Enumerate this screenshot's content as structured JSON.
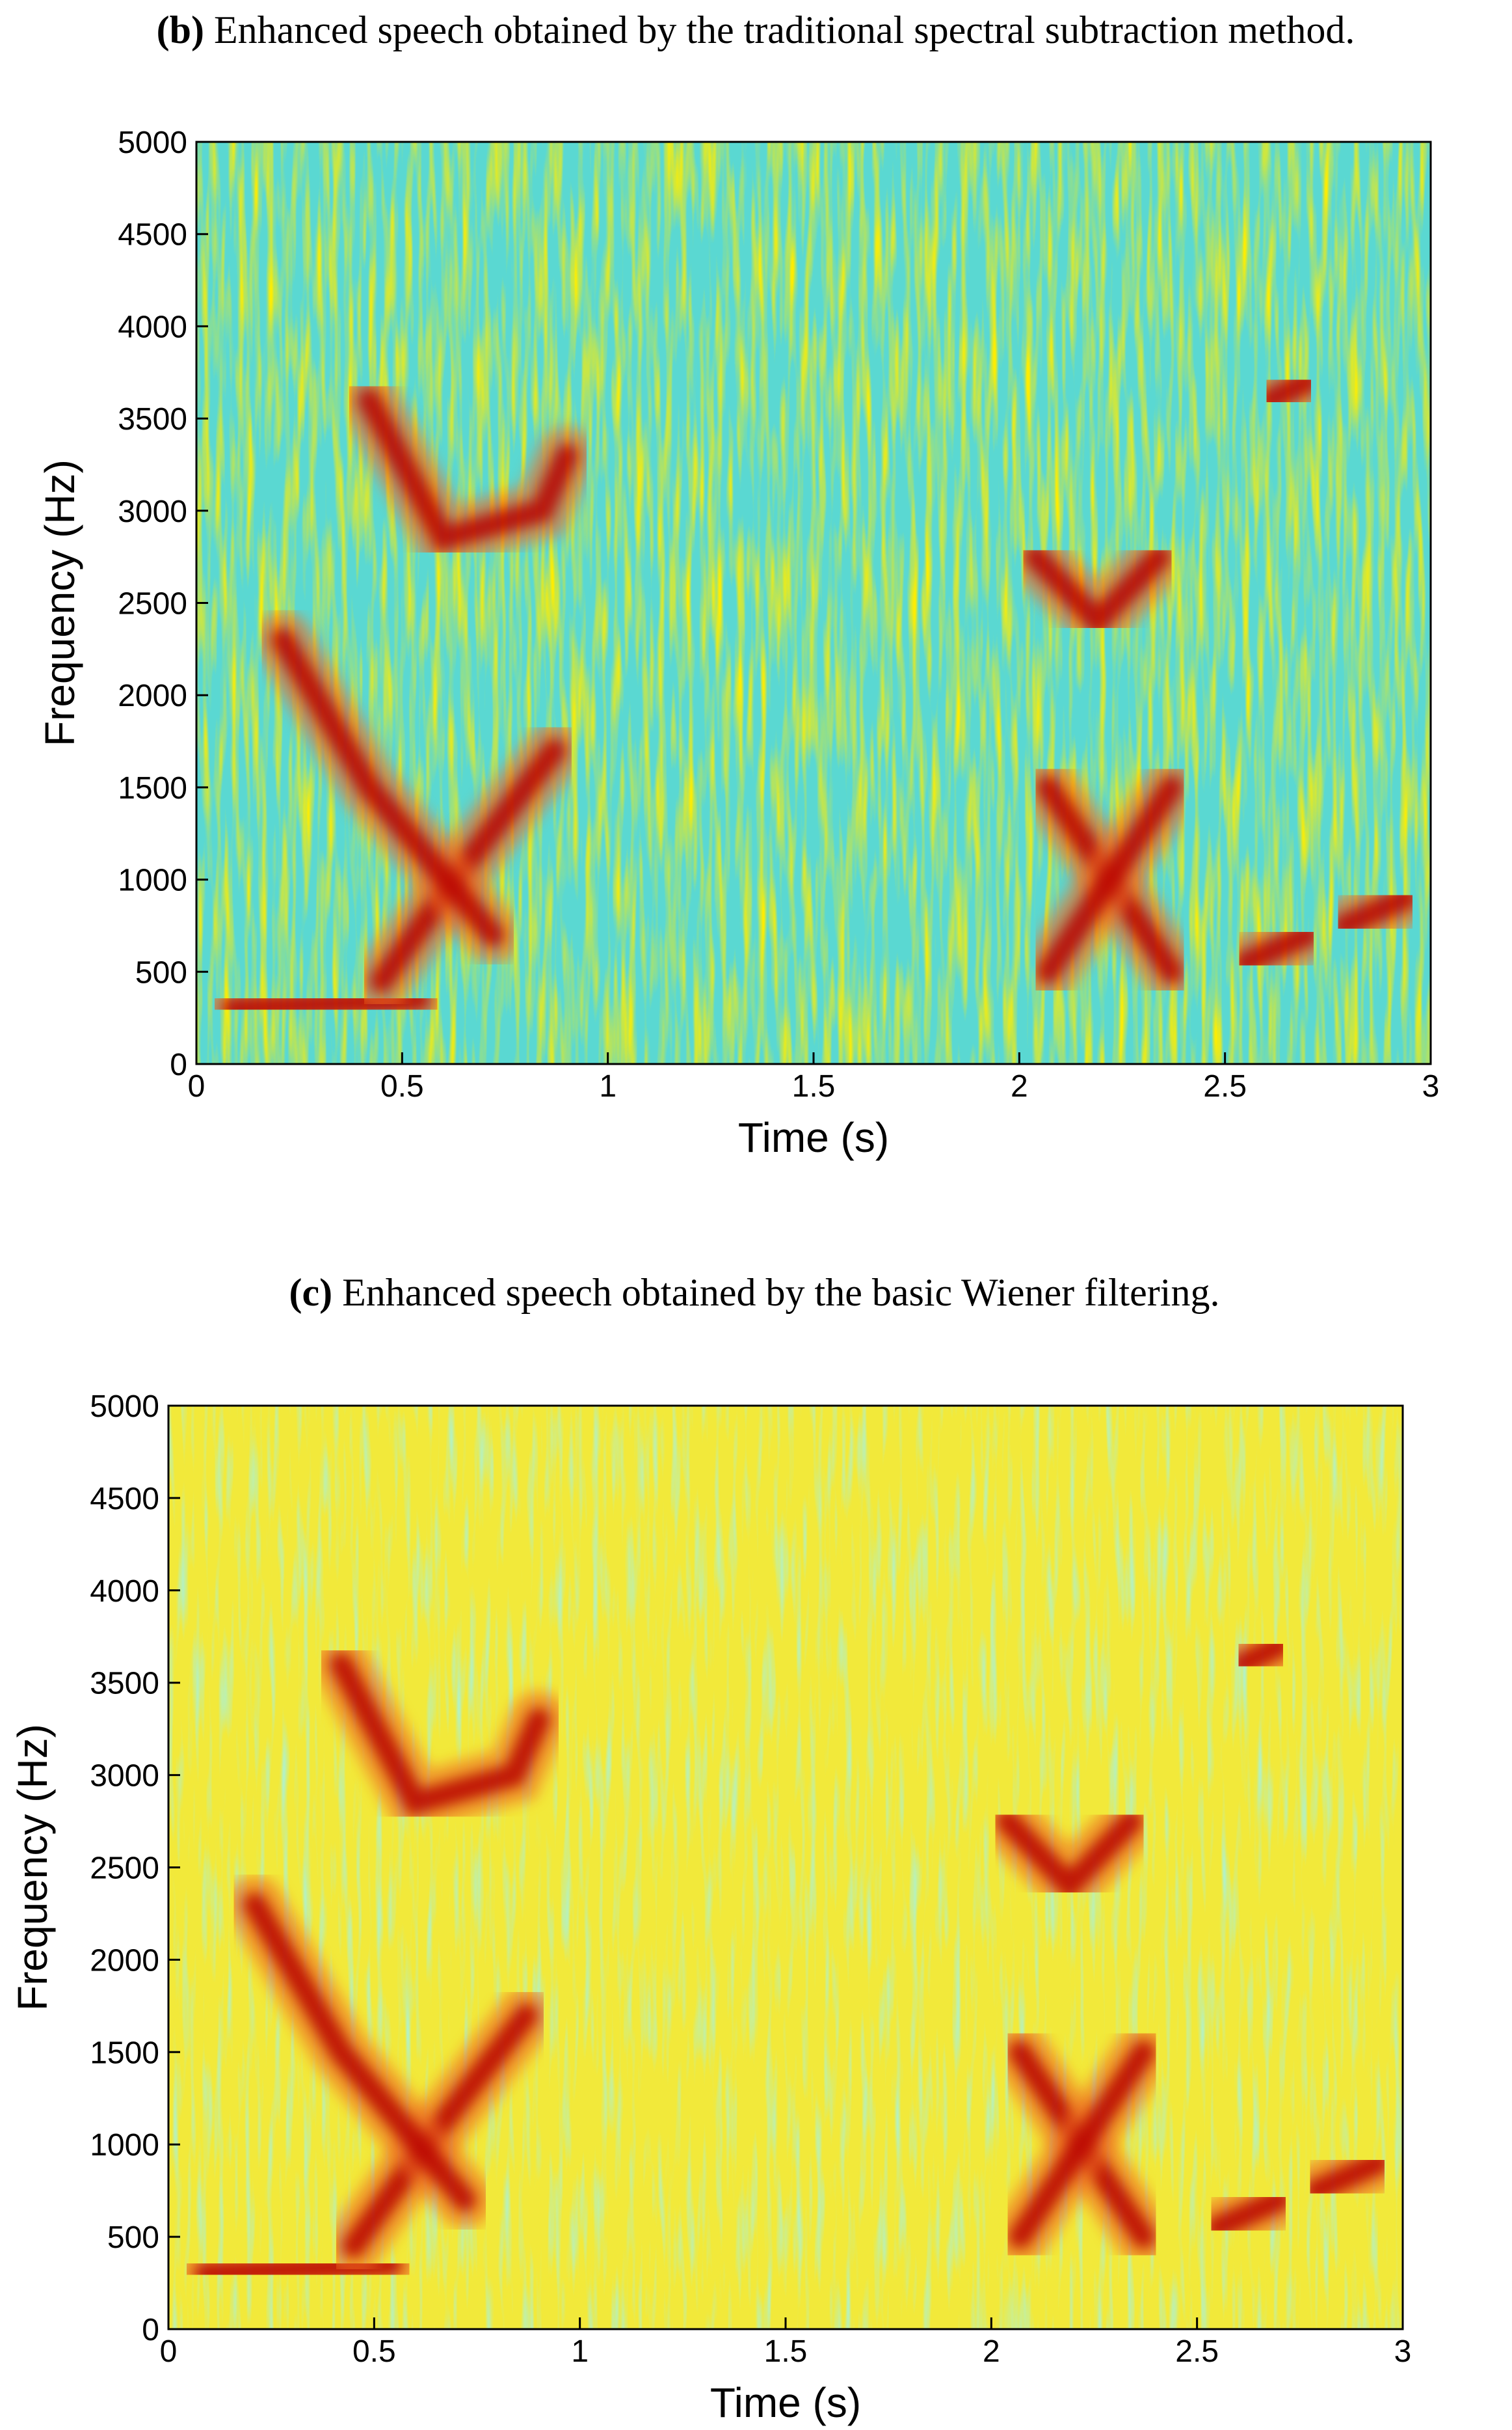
{
  "chart_data": [
    {
      "type": "spectrogram",
      "caption_label": "(b)",
      "caption": "Enhanced speech obtained by the traditional spectral subtraction method.",
      "xlabel": "Time (s)",
      "ylabel": "Frequency (Hz)",
      "xlim": [
        0,
        3
      ],
      "ylim": [
        0,
        5000
      ],
      "xticks": [
        0,
        0.5,
        1,
        1.5,
        2,
        2.5,
        3
      ],
      "yticks": [
        0,
        500,
        1000,
        1500,
        2000,
        2500,
        3000,
        3500,
        4000,
        4500,
        5000
      ]
    },
    {
      "type": "spectrogram",
      "caption_label": "(c)",
      "caption": "Enhanced speech obtained by the basic Wiener filtering.",
      "xlabel": "Time (s)",
      "ylabel": "Frequency (Hz)",
      "xlim": [
        0,
        3
      ],
      "ylim": [
        0,
        5000
      ],
      "xticks": [
        0,
        0.5,
        1,
        1.5,
        2,
        2.5,
        3
      ],
      "yticks": [
        0,
        500,
        1000,
        1500,
        2000,
        2500,
        3000,
        3500,
        4000,
        4500,
        5000
      ]
    }
  ]
}
